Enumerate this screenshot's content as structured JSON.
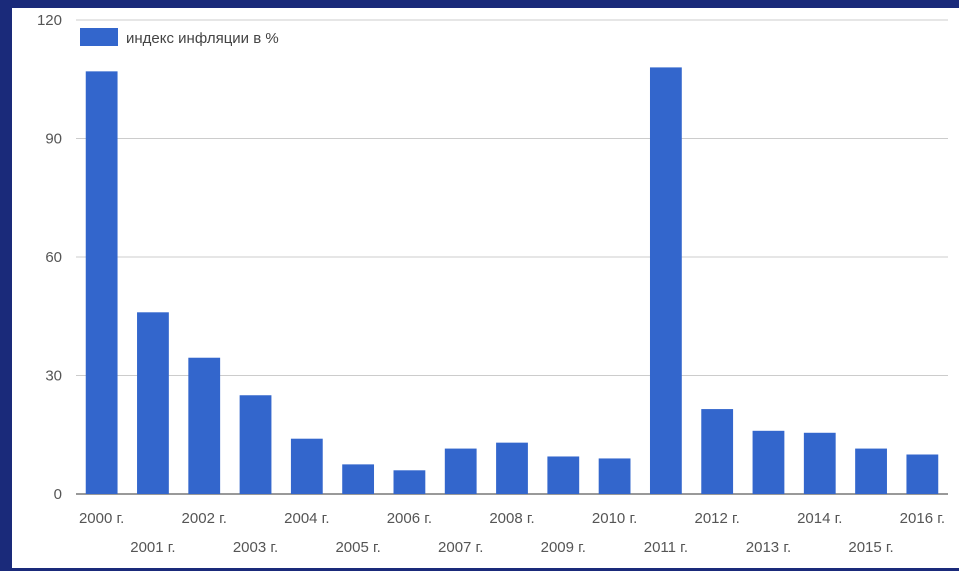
{
  "chart_data": {
    "type": "bar",
    "categories": [
      "2000 г.",
      "2001 г.",
      "2002 г.",
      "2003 г.",
      "2004 г.",
      "2005 г.",
      "2006 г.",
      "2007 г.",
      "2008 г.",
      "2009 г.",
      "2010 г.",
      "2011 г.",
      "2012 г.",
      "2013 г.",
      "2014 г.",
      "2015 г.",
      "2016 г."
    ],
    "series": [
      {
        "name": "индекс инфляции в %",
        "values": [
          107,
          46,
          34.5,
          25,
          14,
          7.5,
          6,
          11.5,
          13,
          9.5,
          9,
          108,
          21.5,
          16,
          15.5,
          11.5,
          10
        ]
      }
    ],
    "yticks": [
      0,
      30,
      60,
      90,
      120
    ],
    "ylim": [
      0,
      120
    ],
    "grid": true,
    "legend_position": "top-left",
    "bar_color": "#3366cc"
  }
}
